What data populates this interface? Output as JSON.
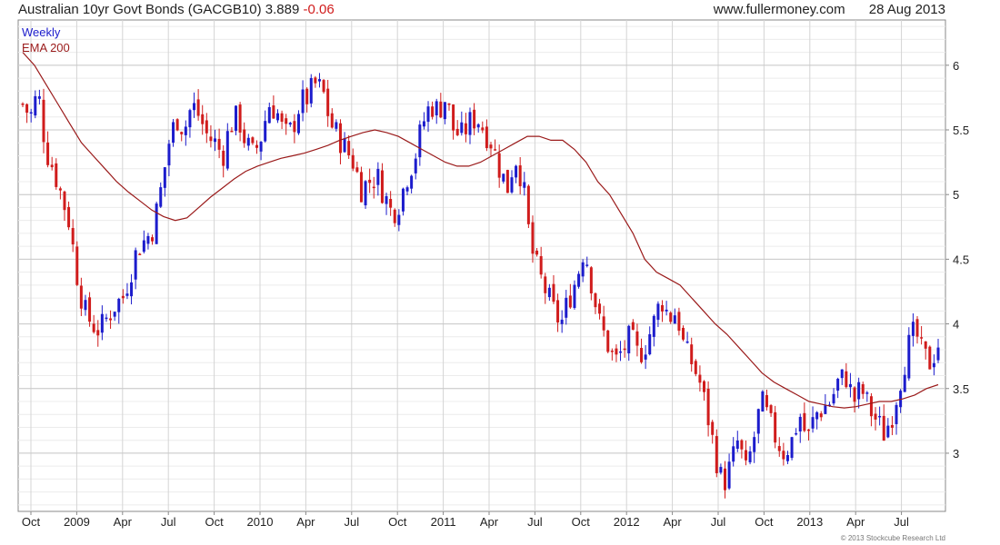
{
  "header": {
    "title": "Australian 10yr Govt Bonds (GACGB10)",
    "last": "3.889",
    "change": "-0.06",
    "site": "www.fullermoney.com",
    "date": "28 Aug 2013"
  },
  "footer": {
    "copyright": "© 2013 Stockcube Research Ltd"
  },
  "colors": {
    "up": "#1c1ccc",
    "down": "#d01c1c",
    "ema": "#9a1a1a",
    "grid": "#d4d4d4",
    "frame": "#888888"
  },
  "chart_data": {
    "type": "candlestick",
    "legend": [
      {
        "label": "Weekly",
        "color": "#1c1ccc"
      },
      {
        "label": "EMA 200",
        "color": "#9a1a1a"
      }
    ],
    "legend_placement": "top-left",
    "grid": true,
    "y_axis_position": "right",
    "ylim": [
      2.55,
      6.35
    ],
    "y_ticks": [
      "3",
      "3.5",
      "4",
      "4.5",
      "5",
      "5.5",
      "6"
    ],
    "x_ticks": [
      "Oct",
      "2009",
      "Apr",
      "Jul",
      "Oct",
      "2010",
      "Apr",
      "Jul",
      "Oct",
      "2011",
      "Apr",
      "Jul",
      "Oct",
      "2012",
      "Apr",
      "Jul",
      "Oct",
      "2013",
      "Apr",
      "Jul"
    ],
    "close_path": [
      5.7,
      5.6,
      5.8,
      5.35,
      5.2,
      5.0,
      4.8,
      4.4,
      4.1,
      4.0,
      3.95,
      4.05,
      4.15,
      4.2,
      4.4,
      4.6,
      4.65,
      4.75,
      5.05,
      5.4,
      5.6,
      5.5,
      5.7,
      5.6,
      5.45,
      5.4,
      5.3,
      5.55,
      5.6,
      5.4,
      5.3,
      5.45,
      5.7,
      5.65,
      5.45,
      5.5,
      5.7,
      5.75,
      5.85,
      5.8,
      5.55,
      5.45,
      5.35,
      5.25,
      5.05,
      5.1,
      5.15,
      5.0,
      4.85,
      4.95,
      5.15,
      5.3,
      5.55,
      5.7,
      5.65,
      5.75,
      5.5,
      5.45,
      5.55,
      5.6,
      5.5,
      5.4,
      5.2,
      5.05,
      5.3,
      5.1,
      4.6,
      4.4,
      4.25,
      4.1,
      4.0,
      4.2,
      4.35,
      4.6,
      4.3,
      4.0,
      3.85,
      3.7,
      3.8,
      3.9,
      3.75,
      3.85,
      4.0,
      4.2,
      4.05,
      4.1,
      3.8,
      3.7,
      3.55,
      3.3,
      3.0,
      2.75,
      2.9,
      3.1,
      2.85,
      3.1,
      3.4,
      3.25,
      3.1,
      3.0,
      3.1,
      3.3,
      3.1,
      3.3,
      3.35,
      3.4,
      3.55,
      3.6,
      3.4,
      3.5,
      3.35,
      3.25,
      3.15,
      3.3,
      3.55,
      3.8,
      3.95,
      3.75,
      3.7,
      3.85
    ],
    "ema200": [
      6.1,
      6.0,
      5.85,
      5.7,
      5.55,
      5.4,
      5.3,
      5.2,
      5.1,
      5.02,
      4.95,
      4.88,
      4.83,
      4.8,
      4.82,
      4.9,
      4.98,
      5.05,
      5.12,
      5.18,
      5.22,
      5.25,
      5.28,
      5.3,
      5.32,
      5.35,
      5.38,
      5.42,
      5.45,
      5.48,
      5.5,
      5.48,
      5.45,
      5.4,
      5.35,
      5.3,
      5.25,
      5.22,
      5.22,
      5.25,
      5.3,
      5.35,
      5.4,
      5.45,
      5.45,
      5.42,
      5.42,
      5.35,
      5.25,
      5.1,
      5.0,
      4.85,
      4.7,
      4.5,
      4.4,
      4.35,
      4.3,
      4.2,
      4.1,
      4.0,
      3.92,
      3.82,
      3.72,
      3.62,
      3.55,
      3.5,
      3.45,
      3.4,
      3.38,
      3.36,
      3.35,
      3.36,
      3.38,
      3.4,
      3.4,
      3.42,
      3.45,
      3.5,
      3.53
    ]
  }
}
